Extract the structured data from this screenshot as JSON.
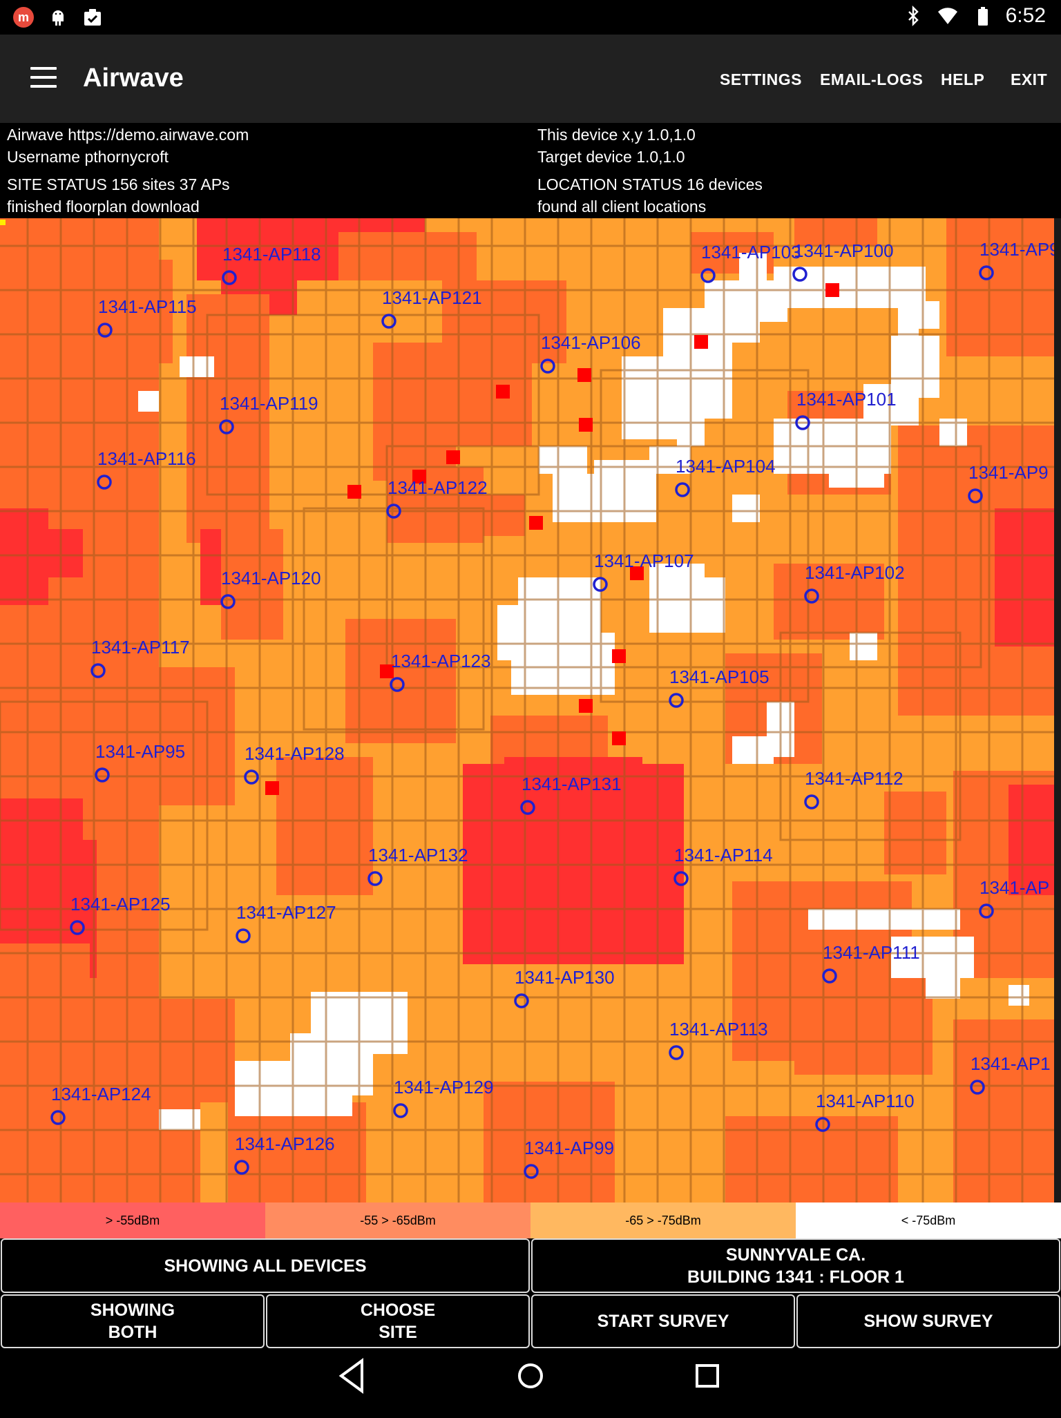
{
  "status_bar": {
    "time": "6:52",
    "icons": [
      "mail-icon",
      "android-icon",
      "clipboard-icon",
      "bluetooth-icon",
      "wifi-icon",
      "battery-icon"
    ]
  },
  "app_bar": {
    "title": "Airwave",
    "actions": [
      "SETTINGS",
      "EMAIL-LOGS",
      "HELP",
      "EXIT"
    ]
  },
  "info": {
    "server": "Airwave  https://demo.airwave.com",
    "username": "Username pthornycroft",
    "site_status": "SITE STATUS 156 sites 37 APs",
    "floorplan": "finished floorplan download",
    "device_xy": "This device x,y 1.0,1.0",
    "target": "Target device   1.0,1.0",
    "location_status": "LOCATION STATUS 16 devices",
    "client_locations": "found all client locations"
  },
  "map": {
    "colors": {
      "strong": "#ff3030",
      "good": "#ff6a2a",
      "fair": "#ffa030",
      "weak": "#ffffff",
      "ap": "#2020d0",
      "client": "#ff0000"
    },
    "aps": [
      "1341-AP118",
      "1341-AP103",
      "1341-AP100",
      "1341-AP9",
      "1341-AP115",
      "1341-AP121",
      "1341-AP106",
      "1341-AP119",
      "1341-AP101",
      "1341-AP116",
      "1341-AP104",
      "1341-AP9",
      "1341-AP122",
      "1341-AP107",
      "1341-AP120",
      "1341-AP102",
      "1341-AP117",
      "1341-AP123",
      "1341-AP105",
      "1341-AP95",
      "1341-AP128",
      "1341-AP131",
      "1341-AP112",
      "1341-AP132",
      "1341-AP114",
      "1341-AP125",
      "1341-AP127",
      "1341-AP",
      "1341-AP111",
      "1341-AP130",
      "1341-AP113",
      "1341-AP1",
      "1341-AP124",
      "1341-AP129",
      "1341-AP110",
      "1341-AP126",
      "1341-AP99"
    ]
  },
  "legend": [
    {
      "label": "> -55dBm",
      "color": "#ff6060"
    },
    {
      "label": "-55 > -65dBm",
      "color": "#ff8c60"
    },
    {
      "label": "-65 > -75dBm",
      "color": "#ffb860"
    },
    {
      "label": "< -75dBm",
      "color": "#ffffff"
    }
  ],
  "buttons": {
    "showing_devices": "SHOWING ALL DEVICES",
    "site_line1": "SUNNYVALE CA.",
    "site_line2": "BUILDING 1341 : FLOOR 1",
    "showing_line1": "SHOWING",
    "showing_line2": "BOTH",
    "choose_line1": "CHOOSE",
    "choose_line2": "SITE",
    "start_survey": "START SURVEY",
    "show_survey": "SHOW SURVEY"
  },
  "nav": [
    "back-icon",
    "home-icon",
    "recents-icon"
  ]
}
